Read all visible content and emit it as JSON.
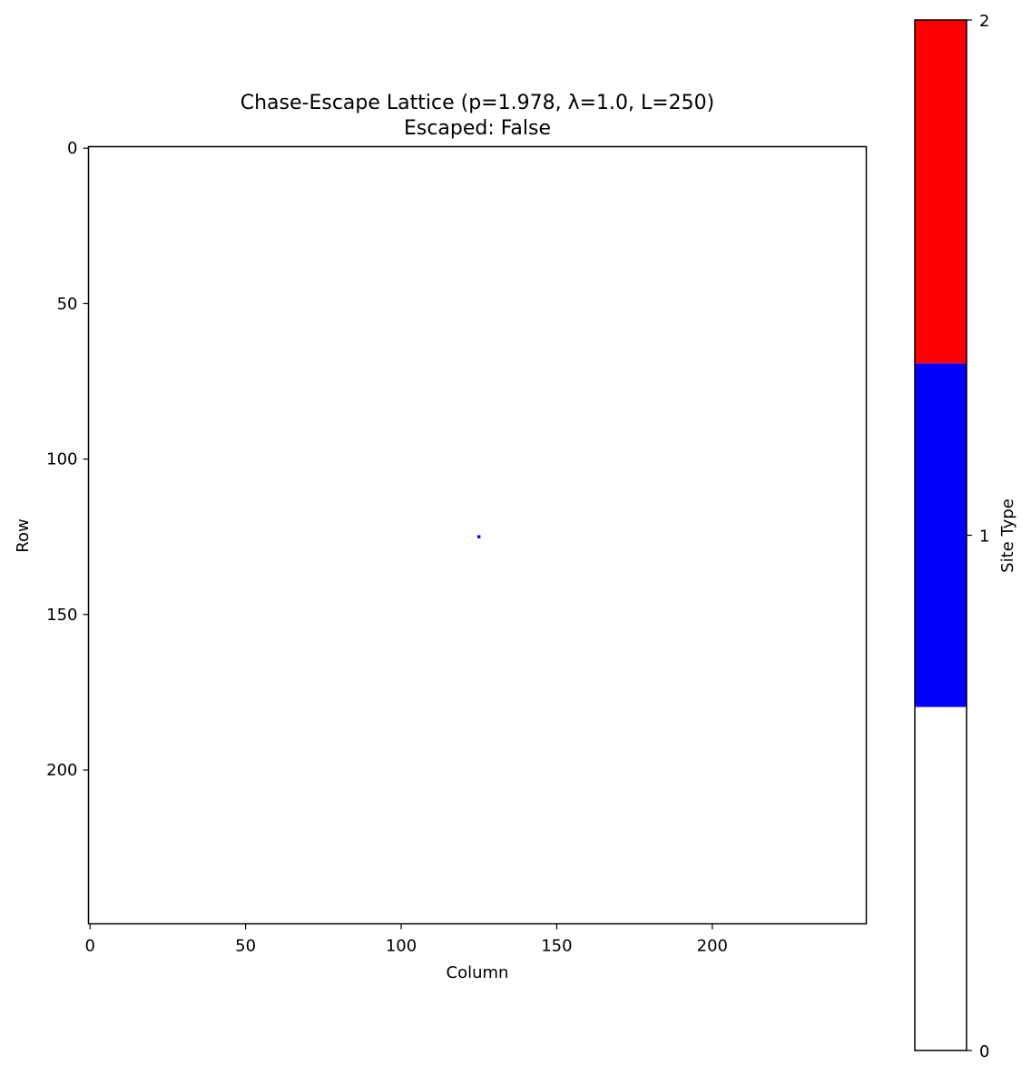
{
  "chart_data": {
    "type": "heatmap",
    "title": "Chase-Escape Lattice (p=1.978, λ=1.0, L=250)",
    "subtitle": "Escaped: False",
    "xlabel": "Column",
    "ylabel": "Row",
    "xlim": [
      0,
      250
    ],
    "ylim": [
      250,
      0
    ],
    "x_ticks": [
      0,
      50,
      100,
      150,
      200
    ],
    "y_ticks": [
      0,
      50,
      100,
      150,
      200
    ],
    "background_value": 0,
    "cells": [
      {
        "row": 125,
        "col": 125,
        "value": 1
      }
    ],
    "colorbar": {
      "label": "Site Type",
      "range": [
        0,
        2
      ],
      "ticks": [
        0,
        1,
        2
      ],
      "levels": [
        {
          "value": 0,
          "color": "#ffffff"
        },
        {
          "value": 1,
          "color": "#0000ff"
        },
        {
          "value": 2,
          "color": "#ff0000"
        }
      ]
    }
  }
}
